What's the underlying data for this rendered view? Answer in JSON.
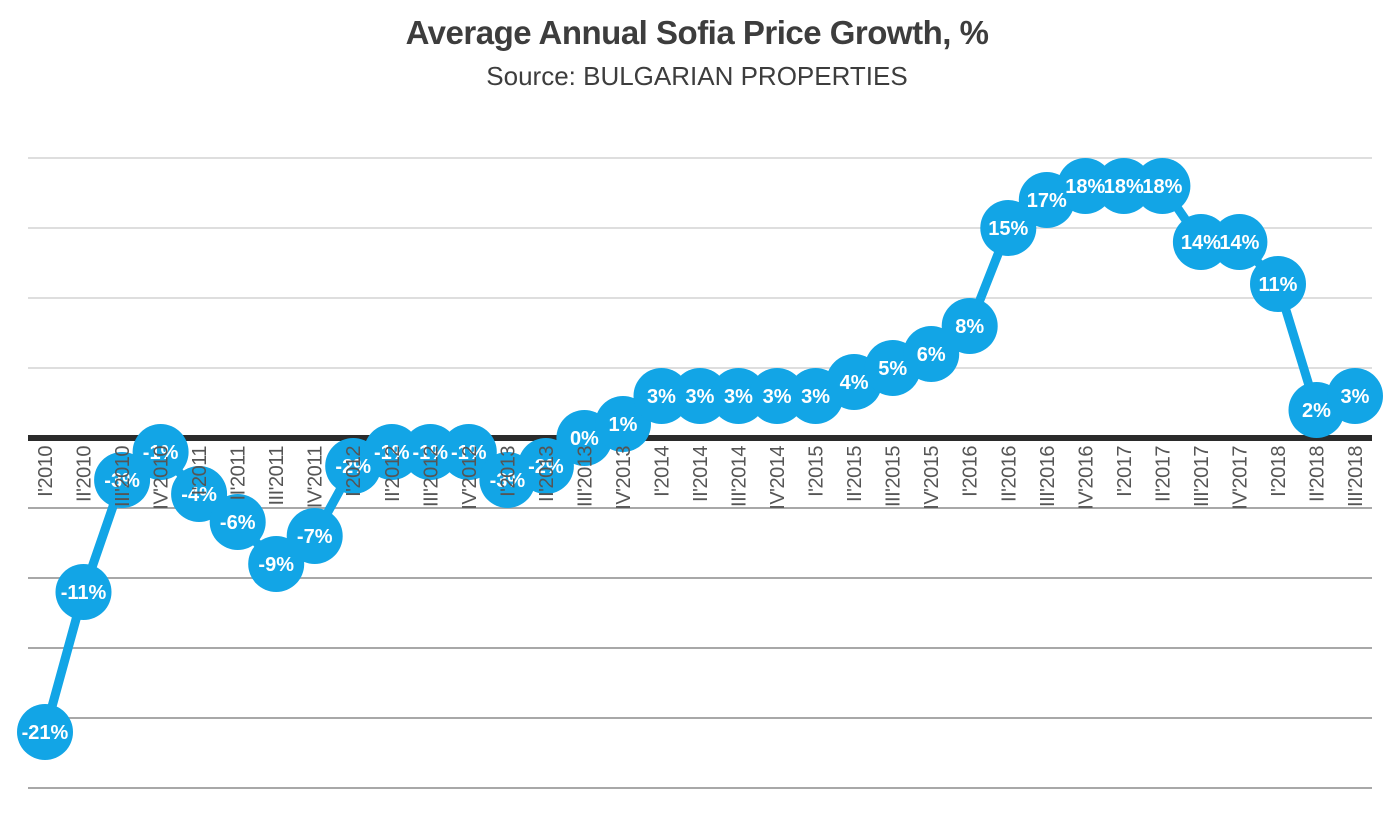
{
  "header": {
    "title": "Average Annual Sofia Price Growth, %",
    "subtitle": "Source: BULGARIAN PROPERTIES"
  },
  "chart_data": {
    "type": "line",
    "title": "Average Annual Sofia Price Growth, %",
    "subtitle": "Source: BULGARIAN PROPERTIES",
    "series_name": "Average annual Sofia price growth",
    "unit": "%",
    "categories": [
      "I'2010",
      "II'2010",
      "III'2010",
      "IV'2010",
      "I'2011",
      "II'2011",
      "III'2011",
      "IV'2011",
      "I'2012",
      "II'2012",
      "III'2012",
      "IV'2012",
      "I'2013",
      "II'2013",
      "III'2013",
      "IV'2013",
      "I'2014",
      "II'2014",
      "III'2014",
      "IV'2014",
      "I'2015",
      "II'2015",
      "III'2015",
      "IV'2015",
      "I'2016",
      "II'2016",
      "III'2016",
      "IV'2016",
      "I'2017",
      "II'2017",
      "III'2017",
      "IV'2017",
      "I'2018",
      "II'2018",
      "III'2018"
    ],
    "values": [
      -21,
      -11,
      -3,
      -1,
      -4,
      -6,
      -9,
      -7,
      -2,
      -1,
      -1,
      -1,
      -3,
      -2,
      0,
      1,
      3,
      3,
      3,
      3,
      3,
      4,
      5,
      6,
      8,
      15,
      17,
      18,
      18,
      18,
      14,
      14,
      11,
      2,
      3
    ],
    "ylim": [
      -25,
      20
    ],
    "gridline_step": 5,
    "grid": "horizontal",
    "legend": "none",
    "marker_style": "large-filled-circle-with-inner-label",
    "x_tick_rotation": -90,
    "colors": {
      "series": "#12a5e6",
      "data_label": "#ffffff",
      "zero_axis": "#2b2b2b",
      "gridline_above_zero": "#dedede",
      "gridline_below_zero": "#a8a8a8",
      "tick_label": "#555555",
      "title": "#3d3d3d"
    }
  }
}
